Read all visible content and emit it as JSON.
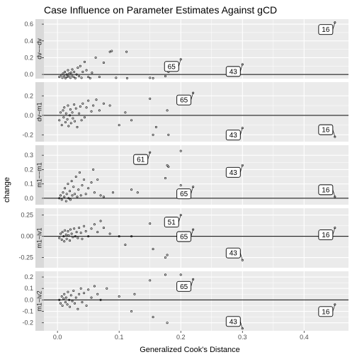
{
  "chart_data": {
    "type": "scatter",
    "title": "Case Influence on Parameter Estimates Against gCD",
    "xlabel": "Generalized Cook's Distance",
    "ylabel": "change",
    "xlim": [
      -0.022,
      0.472
    ],
    "x_ticks": [
      "0.0",
      "0.1",
      "0.2",
      "0.3",
      "0.4"
    ],
    "x_tick_values": [
      0.0,
      0.1,
      0.2,
      0.3,
      0.4
    ],
    "reference_line": 0,
    "grid": true,
    "panels": [
      {
        "strip": "dv~~dv",
        "ylim": [
          -0.05,
          0.66
        ],
        "y_ticks": [
          "0.0",
          "0.2",
          "0.4",
          "0.6"
        ],
        "y_tick_values": [
          0.0,
          0.2,
          0.4,
          0.6
        ],
        "points": [
          [
            0.003,
            -0.03
          ],
          [
            0.006,
            -0.01
          ],
          [
            0.008,
            -0.04
          ],
          [
            0.009,
            0.01
          ],
          [
            0.011,
            -0.02
          ],
          [
            0.012,
            0.03
          ],
          [
            0.013,
            -0.045
          ],
          [
            0.015,
            0.0
          ],
          [
            0.016,
            -0.03
          ],
          [
            0.017,
            0.05
          ],
          [
            0.018,
            -0.02
          ],
          [
            0.019,
            0.01
          ],
          [
            0.021,
            -0.04
          ],
          [
            0.022,
            0.02
          ],
          [
            0.023,
            -0.01
          ],
          [
            0.024,
            0.06
          ],
          [
            0.026,
            -0.03
          ],
          [
            0.027,
            0.03
          ],
          [
            0.029,
            -0.045
          ],
          [
            0.031,
            0.0
          ],
          [
            0.033,
            0.08
          ],
          [
            0.035,
            -0.02
          ],
          [
            0.037,
            0.1
          ],
          [
            0.039,
            -0.04
          ],
          [
            0.041,
            0.03
          ],
          [
            0.044,
            0.15
          ],
          [
            0.047,
            0.05
          ],
          [
            0.05,
            -0.03
          ],
          [
            0.053,
            -0.045
          ],
          [
            0.056,
            0.02
          ],
          [
            0.062,
            0.2
          ],
          [
            0.068,
            -0.03
          ],
          [
            0.075,
            0.14
          ],
          [
            0.085,
            0.27
          ],
          [
            0.088,
            0.28
          ],
          [
            0.095,
            -0.04
          ],
          [
            0.112,
            0.27
          ],
          [
            0.113,
            -0.045
          ],
          [
            0.15,
            -0.04
          ],
          [
            0.155,
            -0.045
          ],
          [
            0.175,
            -0.02
          ],
          [
            0.18,
            0.03
          ],
          [
            0.2,
            0.18
          ],
          [
            0.3,
            0.12
          ],
          [
            0.45,
            0.62
          ]
        ],
        "labels": [
          {
            "text": "16",
            "x": 0.45,
            "y": 0.62
          },
          {
            "text": "65",
            "x": 0.2,
            "y": 0.18
          },
          {
            "text": "43",
            "x": 0.3,
            "y": 0.12
          }
        ]
      },
      {
        "strip": "dv~m1",
        "ylim": [
          -0.27,
          0.34
        ],
        "y_ticks": [
          "-0.2",
          "0.0",
          "0.2"
        ],
        "y_tick_values": [
          -0.2,
          0.0,
          0.2
        ],
        "points": [
          [
            0.003,
            -0.05
          ],
          [
            0.005,
            0.03
          ],
          [
            0.007,
            -0.1
          ],
          [
            0.009,
            0.05
          ],
          [
            0.01,
            -0.02
          ],
          [
            0.011,
            0.08
          ],
          [
            0.013,
            -0.07
          ],
          [
            0.014,
            0.02
          ],
          [
            0.016,
            -0.04
          ],
          [
            0.017,
            0.1
          ],
          [
            0.018,
            -0.11
          ],
          [
            0.02,
            0.0
          ],
          [
            0.021,
            0.06
          ],
          [
            0.022,
            -0.08
          ],
          [
            0.024,
            0.03
          ],
          [
            0.025,
            -0.03
          ],
          [
            0.027,
            0.11
          ],
          [
            0.028,
            -0.06
          ],
          [
            0.03,
            0.07
          ],
          [
            0.032,
            -0.12
          ],
          [
            0.035,
            0.02
          ],
          [
            0.037,
            0.09
          ],
          [
            0.039,
            -0.05
          ],
          [
            0.041,
            0.12
          ],
          [
            0.044,
            -0.02
          ],
          [
            0.047,
            0.08
          ],
          [
            0.05,
            0.15
          ],
          [
            0.055,
            0.04
          ],
          [
            0.058,
            0.1
          ],
          [
            0.063,
            0.16
          ],
          [
            0.068,
            0.05
          ],
          [
            0.075,
            0.12
          ],
          [
            0.085,
            0.1
          ],
          [
            0.1,
            -0.1
          ],
          [
            0.11,
            0.03
          ],
          [
            0.12,
            -0.05
          ],
          [
            0.15,
            0.17
          ],
          [
            0.155,
            -0.2
          ],
          [
            0.16,
            -0.12
          ],
          [
            0.178,
            0.05
          ],
          [
            0.18,
            -0.2
          ],
          [
            0.22,
            0.23
          ],
          [
            0.3,
            -0.13
          ],
          [
            0.45,
            -0.22
          ]
        ],
        "labels": [
          {
            "text": "65",
            "x": 0.22,
            "y": 0.23
          },
          {
            "text": "43",
            "x": 0.3,
            "y": -0.13
          },
          {
            "text": "16",
            "x": 0.45,
            "y": -0.22
          }
        ]
      },
      {
        "strip": "m1~~m1",
        "ylim": [
          -0.045,
          0.37
        ],
        "y_ticks": [
          "0.0",
          "0.1",
          "0.2",
          "0.3"
        ],
        "y_tick_values": [
          0.0,
          0.1,
          0.2,
          0.3
        ],
        "points": [
          [
            0.003,
            0.0
          ],
          [
            0.005,
            0.02
          ],
          [
            0.007,
            -0.01
          ],
          [
            0.009,
            0.04
          ],
          [
            0.011,
            0.01
          ],
          [
            0.012,
            0.07
          ],
          [
            0.014,
            -0.02
          ],
          [
            0.015,
            0.03
          ],
          [
            0.017,
            0.1
          ],
          [
            0.018,
            0.0
          ],
          [
            0.02,
            0.05
          ],
          [
            0.021,
            -0.01
          ],
          [
            0.023,
            0.12
          ],
          [
            0.024,
            0.02
          ],
          [
            0.026,
            0.08
          ],
          [
            0.028,
            0.03
          ],
          [
            0.03,
            0.15
          ],
          [
            0.032,
            0.01
          ],
          [
            0.034,
            0.06
          ],
          [
            0.036,
            0.18
          ],
          [
            0.038,
            0.02
          ],
          [
            0.04,
            0.09
          ],
          [
            0.043,
            0.13
          ],
          [
            0.046,
            0.03
          ],
          [
            0.05,
            0.07
          ],
          [
            0.055,
            0.11
          ],
          [
            0.058,
            0.2
          ],
          [
            0.06,
            0.04
          ],
          [
            0.065,
            0.13
          ],
          [
            0.07,
            0.02
          ],
          [
            0.075,
            0.01
          ],
          [
            0.09,
            0.04
          ],
          [
            0.12,
            0.06
          ],
          [
            0.13,
            0.04
          ],
          [
            0.15,
            0.32
          ],
          [
            0.175,
            0.14
          ],
          [
            0.178,
            0.23
          ],
          [
            0.18,
            0.22
          ],
          [
            0.2,
            0.33
          ],
          [
            0.2,
            0.09
          ],
          [
            0.22,
            0.08
          ],
          [
            0.3,
            0.23
          ],
          [
            0.45,
            0.01
          ]
        ],
        "labels": [
          {
            "text": "61",
            "x": 0.15,
            "y": 0.32
          },
          {
            "text": "43",
            "x": 0.3,
            "y": 0.23
          },
          {
            "text": "65",
            "x": 0.22,
            "y": 0.08
          },
          {
            "text": "16",
            "x": 0.45,
            "y": 0.01
          }
        ]
      },
      {
        "strip": "m1~iv1",
        "ylim": [
          -0.37,
          0.33
        ],
        "y_ticks": [
          "-0.25",
          "0.00",
          "0.25"
        ],
        "y_tick_values": [
          -0.25,
          0.0,
          0.25
        ],
        "points": [
          [
            0.003,
            -0.02
          ],
          [
            0.005,
            0.03
          ],
          [
            0.007,
            -0.04
          ],
          [
            0.008,
            0.05
          ],
          [
            0.01,
            0.0
          ],
          [
            0.011,
            -0.06
          ],
          [
            0.012,
            0.07
          ],
          [
            0.014,
            0.02
          ],
          [
            0.015,
            -0.03
          ],
          [
            0.017,
            0.06
          ],
          [
            0.018,
            0.01
          ],
          [
            0.02,
            -0.05
          ],
          [
            0.021,
            0.08
          ],
          [
            0.023,
            0.03
          ],
          [
            0.025,
            -0.01
          ],
          [
            0.027,
            0.09
          ],
          [
            0.029,
            0.0
          ],
          [
            0.031,
            0.05
          ],
          [
            0.033,
            -0.02
          ],
          [
            0.035,
            0.1
          ],
          [
            0.038,
            0.04
          ],
          [
            0.04,
            -0.03
          ],
          [
            0.043,
            0.12
          ],
          [
            0.046,
            0.06
          ],
          [
            0.05,
            0.0
          ],
          [
            0.055,
            0.09
          ],
          [
            0.06,
            0.14
          ],
          [
            0.065,
            0.05
          ],
          [
            0.07,
            0.18
          ],
          [
            0.075,
            0.1
          ],
          [
            0.085,
            0.03
          ],
          [
            0.1,
            0.0
          ],
          [
            0.11,
            -0.1
          ],
          [
            0.12,
            0.0
          ],
          [
            0.15,
            0.15
          ],
          [
            0.155,
            -0.15
          ],
          [
            0.175,
            -0.25
          ],
          [
            0.178,
            -0.22
          ],
          [
            0.2,
            0.25
          ],
          [
            0.22,
            0.08
          ],
          [
            0.3,
            -0.28
          ],
          [
            0.45,
            0.1
          ]
        ],
        "labels": [
          {
            "text": "51",
            "x": 0.2,
            "y": 0.25
          },
          {
            "text": "65",
            "x": 0.22,
            "y": 0.08
          },
          {
            "text": "16",
            "x": 0.45,
            "y": 0.1
          },
          {
            "text": "43",
            "x": 0.3,
            "y": -0.28
          }
        ]
      },
      {
        "strip": "m1~iv2",
        "ylim": [
          -0.27,
          0.25
        ],
        "y_ticks": [
          "-0.2",
          "-0.1",
          "0.0",
          "0.1",
          "0.2"
        ],
        "y_tick_values": [
          -0.2,
          -0.1,
          0.0,
          0.1,
          0.2
        ],
        "points": [
          [
            0.003,
            0.0
          ],
          [
            0.005,
            -0.03
          ],
          [
            0.007,
            0.03
          ],
          [
            0.008,
            -0.05
          ],
          [
            0.01,
            0.01
          ],
          [
            0.011,
            0.05
          ],
          [
            0.013,
            -0.02
          ],
          [
            0.014,
            0.02
          ],
          [
            0.016,
            -0.04
          ],
          [
            0.017,
            0.07
          ],
          [
            0.019,
            0.0
          ],
          [
            0.02,
            -0.06
          ],
          [
            0.022,
            0.04
          ],
          [
            0.024,
            -0.01
          ],
          [
            0.026,
            0.08
          ],
          [
            0.028,
            -0.03
          ],
          [
            0.03,
            0.02
          ],
          [
            0.033,
            -0.08
          ],
          [
            0.035,
            0.05
          ],
          [
            0.038,
            0.1
          ],
          [
            0.04,
            -0.02
          ],
          [
            0.043,
            0.06
          ],
          [
            0.047,
            -0.05
          ],
          [
            0.05,
            0.09
          ],
          [
            0.055,
            0.02
          ],
          [
            0.06,
            0.12
          ],
          [
            0.065,
            0.05
          ],
          [
            0.07,
            0.0
          ],
          [
            0.08,
            0.1
          ],
          [
            0.1,
            0.03
          ],
          [
            0.12,
            -0.1
          ],
          [
            0.125,
            0.05
          ],
          [
            0.15,
            0.17
          ],
          [
            0.155,
            -0.15
          ],
          [
            0.175,
            0.22
          ],
          [
            0.178,
            -0.2
          ],
          [
            0.2,
            0.22
          ],
          [
            0.22,
            0.18
          ],
          [
            0.3,
            -0.25
          ],
          [
            0.45,
            -0.04
          ]
        ],
        "labels": [
          {
            "text": "65",
            "x": 0.22,
            "y": 0.18
          },
          {
            "text": "16",
            "x": 0.45,
            "y": -0.04
          },
          {
            "text": "43",
            "x": 0.3,
            "y": -0.25
          }
        ]
      }
    ]
  }
}
